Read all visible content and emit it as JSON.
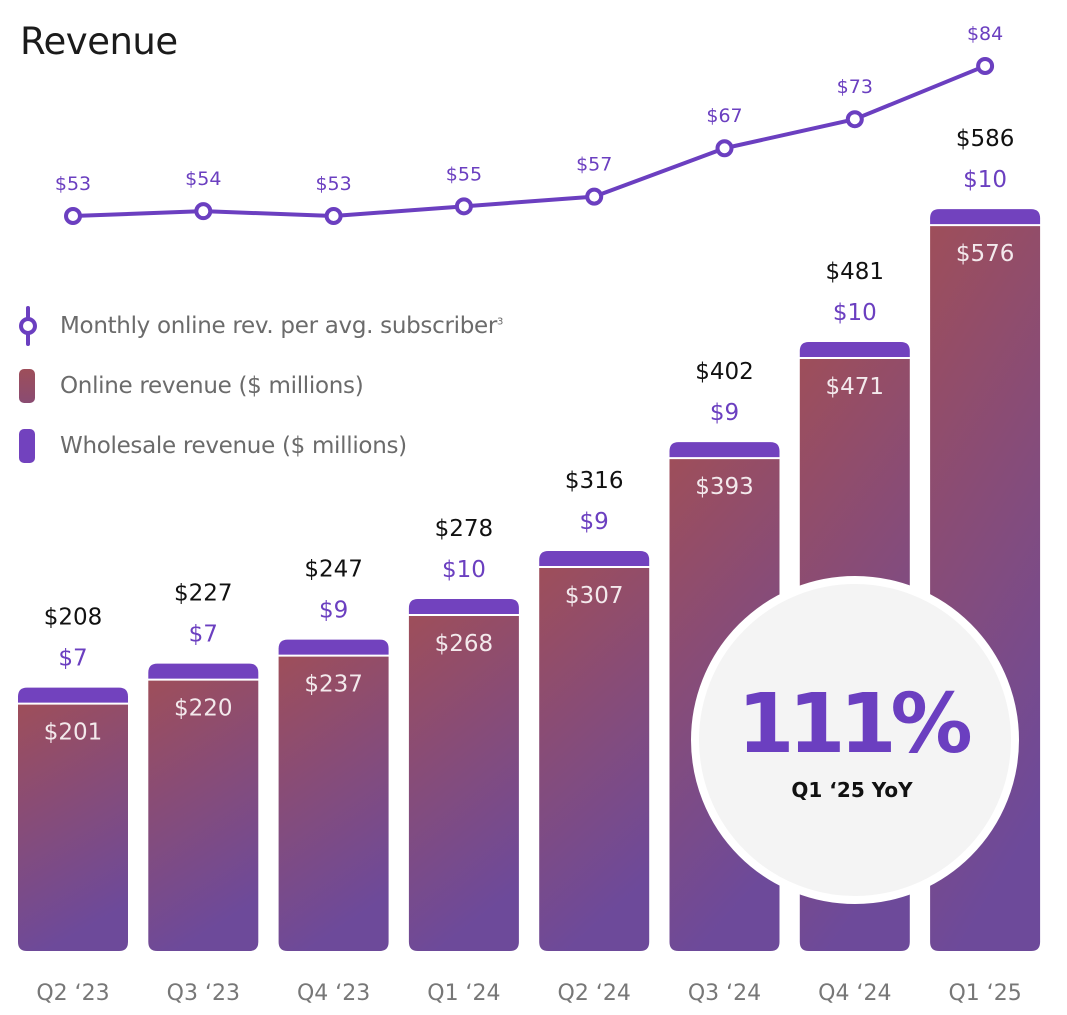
{
  "title": "Revenue",
  "legend": [
    {
      "label": "Monthly online rev. per avg. subscriber",
      "superscript": "3",
      "icon": "line-marker-icon"
    },
    {
      "label": "Online revenue ($ millions)",
      "icon": "online-swatch"
    },
    {
      "label": "Wholesale revenue ($ millions)",
      "icon": "wholesale-swatch"
    }
  ],
  "colors": {
    "line": "#6b3fc0",
    "wholesale": "#7242be",
    "online_top": "#9e4e5a",
    "online_bottom": "#6d4a9a",
    "total_label": "#111111",
    "online_label": "#f3e9ec",
    "axis_label": "#777777"
  },
  "callout": {
    "value": "111%",
    "label": "Q1 ‘25 YoY"
  },
  "chart_data": {
    "type": "bar",
    "stacked": true,
    "title": "Revenue",
    "categories": [
      "Q2 ‘23",
      "Q3 ‘23",
      "Q4 ‘23",
      "Q1 ‘24",
      "Q2 ‘24",
      "Q3 ‘24",
      "Q4 ‘24",
      "Q1 ‘25"
    ],
    "series": [
      {
        "name": "Online revenue ($ millions)",
        "values": [
          201,
          220,
          237,
          268,
          307,
          393,
          471,
          576
        ]
      },
      {
        "name": "Wholesale revenue ($ millions)",
        "values": [
          7,
          7,
          9,
          10,
          9,
          9,
          10,
          10
        ]
      }
    ],
    "totals": [
      208,
      227,
      247,
      278,
      316,
      402,
      481,
      586
    ],
    "labels": {
      "online": [
        "$201",
        "$220",
        "$237",
        "$268",
        "$307",
        "$393",
        "$471",
        "$576"
      ],
      "wholesale": [
        "$7",
        "$7",
        "$9",
        "$10",
        "$9",
        "$9",
        "$10",
        "$10"
      ],
      "totals": [
        "$208",
        "$227",
        "$247",
        "$278",
        "$316",
        "$402",
        "$481",
        "$586"
      ]
    },
    "line_series": {
      "name": "Monthly online rev. per avg. subscriber",
      "type": "line",
      "values": [
        53,
        54,
        53,
        55,
        57,
        67,
        73,
        84
      ],
      "labels": [
        "$53",
        "$54",
        "$53",
        "$55",
        "$57",
        "$67",
        "$73",
        "$84"
      ]
    },
    "xlabel": "",
    "ylabel": "",
    "grid": false,
    "legend_position": "left"
  }
}
